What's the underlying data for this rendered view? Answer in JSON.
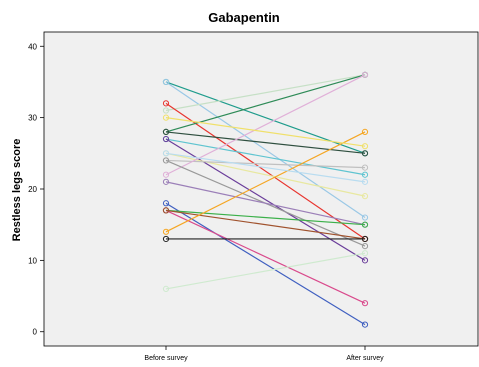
{
  "chart_data": {
    "type": "line",
    "title": "Gabapentin",
    "xlabel": "",
    "ylabel": "Restless legs score",
    "categories": [
      "Before survey",
      "After survey"
    ],
    "ylim": [
      -2,
      42
    ],
    "yticks": [
      "0",
      "10",
      "20",
      "30",
      "40"
    ],
    "grid": false,
    "plot_background": "#f0f0f0",
    "series": [
      {
        "values": [
          35,
          25
        ],
        "color": "#1f9c8c"
      },
      {
        "values": [
          35,
          16
        ],
        "color": "#9ac8e6"
      },
      {
        "values": [
          31,
          36
        ],
        "color": "#c6e0c6"
      },
      {
        "values": [
          32,
          13
        ],
        "color": "#e8352f"
      },
      {
        "values": [
          28,
          36
        ],
        "color": "#2e8b57"
      },
      {
        "values": [
          28,
          25
        ],
        "color": "#2f4f3f"
      },
      {
        "values": [
          27,
          22
        ],
        "color": "#5fc4d0"
      },
      {
        "values": [
          27,
          10
        ],
        "color": "#6a3d9a"
      },
      {
        "values": [
          25,
          19
        ],
        "color": "#e8e8a0"
      },
      {
        "values": [
          24,
          23
        ],
        "color": "#c0c0c0"
      },
      {
        "values": [
          22,
          36
        ],
        "color": "#e0b0d8"
      },
      {
        "values": [
          24,
          12
        ],
        "color": "#999999"
      },
      {
        "values": [
          21,
          15
        ],
        "color": "#9b7fb8"
      },
      {
        "values": [
          18,
          1
        ],
        "color": "#3f5fc0"
      },
      {
        "values": [
          17,
          15
        ],
        "color": "#3cb04a"
      },
      {
        "values": [
          17,
          4
        ],
        "color": "#d94a8c"
      },
      {
        "values": [
          17,
          13
        ],
        "color": "#a0522d"
      },
      {
        "values": [
          14,
          28
        ],
        "color": "#f5a623"
      },
      {
        "values": [
          13,
          13
        ],
        "color": "#222222"
      },
      {
        "values": [
          6,
          11
        ],
        "color": "#cfeacf"
      },
      {
        "values": [
          30,
          26
        ],
        "color": "#f0e06a"
      },
      {
        "values": [
          25,
          21
        ],
        "color": "#b8dcf0"
      }
    ]
  }
}
